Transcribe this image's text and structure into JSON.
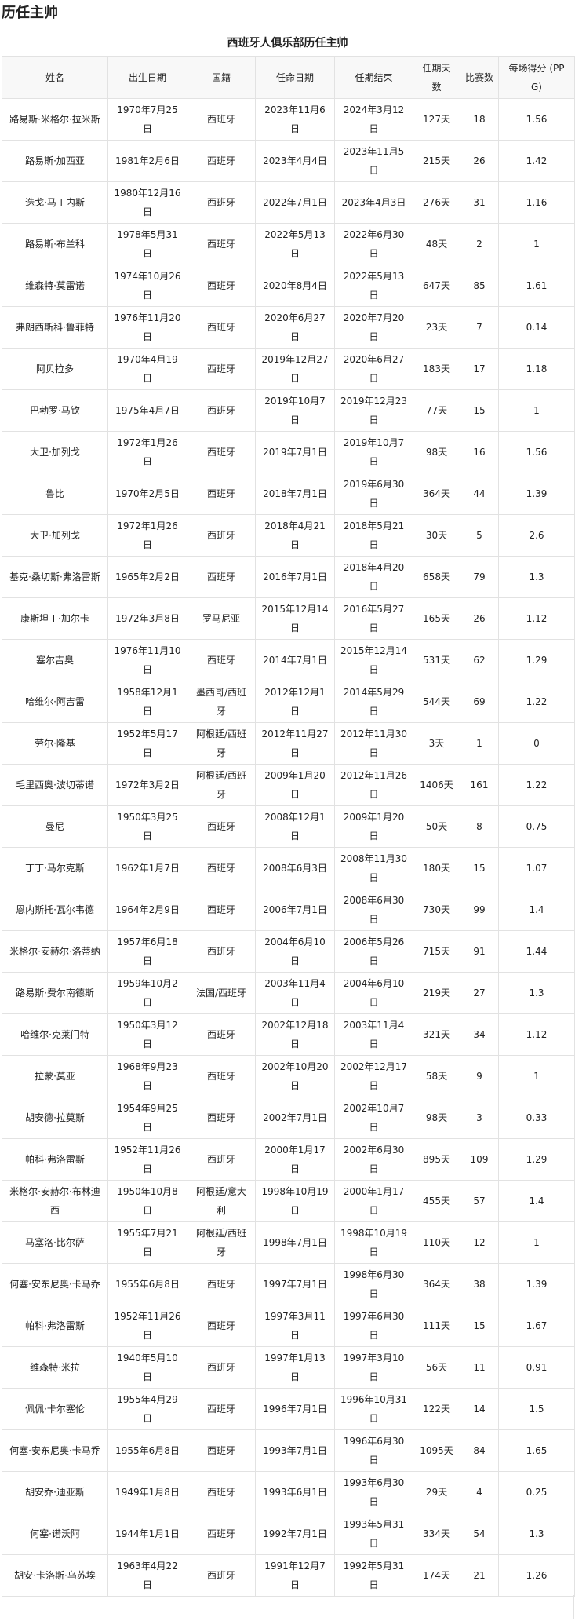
{
  "page_title": "历任主帅",
  "table": {
    "caption": "西班牙人俱乐部历任主帅",
    "columns": [
      "姓名",
      "出生日期",
      "国籍",
      "任命日期",
      "任期结束",
      "任期天数",
      "比赛数",
      "每场得分 (PPG)"
    ],
    "rows": [
      [
        "路易斯·米格尔·拉米斯",
        "1970年7月25日",
        "西班牙",
        "2023年11月6日",
        "2024年3月12日",
        "127天",
        "18",
        "1.56"
      ],
      [
        "路易斯·加西亚",
        "1981年2月6日",
        "西班牙",
        "2023年4月4日",
        "2023年11月5日",
        "215天",
        "26",
        "1.42"
      ],
      [
        "迭戈·马丁内斯",
        "1980年12月16日",
        "西班牙",
        "2022年7月1日",
        "2023年4月3日",
        "276天",
        "31",
        "1.16"
      ],
      [
        "路易斯·布兰科",
        "1978年5月31日",
        "西班牙",
        "2022年5月13日",
        "2022年6月30日",
        "48天",
        "2",
        "1"
      ],
      [
        "维森特·莫雷诺",
        "1974年10月26日",
        "西班牙",
        "2020年8月4日",
        "2022年5月13日",
        "647天",
        "85",
        "1.61"
      ],
      [
        "弗朗西斯科·鲁菲特",
        "1976年11月20日",
        "西班牙",
        "2020年6月27日",
        "2020年7月20日",
        "23天",
        "7",
        "0.14"
      ],
      [
        "阿贝拉多",
        "1970年4月19日",
        "西班牙",
        "2019年12月27日",
        "2020年6月27日",
        "183天",
        "17",
        "1.18"
      ],
      [
        "巴勃罗·马钦",
        "1975年4月7日",
        "西班牙",
        "2019年10月7日",
        "2019年12月23日",
        "77天",
        "15",
        "1"
      ],
      [
        "大卫·加列戈",
        "1972年1月26日",
        "西班牙",
        "2019年7月1日",
        "2019年10月7日",
        "98天",
        "16",
        "1.56"
      ],
      [
        "鲁比",
        "1970年2月5日",
        "西班牙",
        "2018年7月1日",
        "2019年6月30日",
        "364天",
        "44",
        "1.39"
      ],
      [
        "大卫·加列戈",
        "1972年1月26日",
        "西班牙",
        "2018年4月21日",
        "2018年5月21日",
        "30天",
        "5",
        "2.6"
      ],
      [
        "基克·桑切斯·弗洛雷斯",
        "1965年2月2日",
        "西班牙",
        "2016年7月1日",
        "2018年4月20日",
        "658天",
        "79",
        "1.3"
      ],
      [
        "康斯坦丁·加尔卡",
        "1972年3月8日",
        "罗马尼亚",
        "2015年12月14日",
        "2016年5月27日",
        "165天",
        "26",
        "1.12"
      ],
      [
        "塞尔吉奥",
        "1976年11月10日",
        "西班牙",
        "2014年7月1日",
        "2015年12月14日",
        "531天",
        "62",
        "1.29"
      ],
      [
        "哈维尔·阿吉雷",
        "1958年12月1日",
        "墨西哥/西班牙",
        "2012年12月1日",
        "2014年5月29日",
        "544天",
        "69",
        "1.22"
      ],
      [
        "劳尔·隆基",
        "1952年5月17日",
        "阿根廷/西班牙",
        "2012年11月27日",
        "2012年11月30日",
        "3天",
        "1",
        "0"
      ],
      [
        "毛里西奥·波切蒂诺",
        "1972年3月2日",
        "阿根廷/西班牙",
        "2009年1月20日",
        "2012年11月26日",
        "1406天",
        "161",
        "1.22"
      ],
      [
        "曼尼",
        "1950年3月25日",
        "西班牙",
        "2008年12月1日",
        "2009年1月20日",
        "50天",
        "8",
        "0.75"
      ],
      [
        "丁丁·马尔克斯",
        "1962年1月7日",
        "西班牙",
        "2008年6月3日",
        "2008年11月30日",
        "180天",
        "15",
        "1.07"
      ],
      [
        "恩内斯托·瓦尔韦德",
        "1964年2月9日",
        "西班牙",
        "2006年7月1日",
        "2008年6月30日",
        "730天",
        "99",
        "1.4"
      ],
      [
        "米格尔·安赫尔·洛蒂纳",
        "1957年6月18日",
        "西班牙",
        "2004年6月10日",
        "2006年5月26日",
        "715天",
        "91",
        "1.44"
      ],
      [
        "路易斯·费尔南德斯",
        "1959年10月2日",
        "法国/西班牙",
        "2003年11月4日",
        "2004年6月10日",
        "219天",
        "27",
        "1.3"
      ],
      [
        "哈维尔·克莱门特",
        "1950年3月12日",
        "西班牙",
        "2002年12月18日",
        "2003年11月4日",
        "321天",
        "34",
        "1.12"
      ],
      [
        "拉蒙·莫亚",
        "1968年9月23日",
        "西班牙",
        "2002年10月20日",
        "2002年12月17日",
        "58天",
        "9",
        "1"
      ],
      [
        "胡安德·拉莫斯",
        "1954年9月25日",
        "西班牙",
        "2002年7月1日",
        "2002年10月7日",
        "98天",
        "3",
        "0.33"
      ],
      [
        "帕科·弗洛雷斯",
        "1952年11月26日",
        "西班牙",
        "2000年1月17日",
        "2002年6月30日",
        "895天",
        "109",
        "1.29"
      ],
      [
        "米格尔·安赫尔·布林迪西",
        "1950年10月8日",
        "阿根廷/意大利",
        "1998年10月19日",
        "2000年1月17日",
        "455天",
        "57",
        "1.4"
      ],
      [
        "马塞洛·比尔萨",
        "1955年7月21日",
        "阿根廷/西班牙",
        "1998年7月1日",
        "1998年10月19日",
        "110天",
        "12",
        "1"
      ],
      [
        "何塞·安东尼奥·卡马乔",
        "1955年6月8日",
        "西班牙",
        "1997年7月1日",
        "1998年6月30日",
        "364天",
        "38",
        "1.39"
      ],
      [
        "帕科·弗洛雷斯",
        "1952年11月26日",
        "西班牙",
        "1997年3月11日",
        "1997年6月30日",
        "111天",
        "15",
        "1.67"
      ],
      [
        "维森特·米拉",
        "1940年5月10日",
        "西班牙",
        "1997年1月13日",
        "1997年3月10日",
        "56天",
        "11",
        "0.91"
      ],
      [
        "佩佩·卡尔塞伦",
        "1955年4月29日",
        "西班牙",
        "1996年7月1日",
        "1996年10月31日",
        "122天",
        "14",
        "1.5"
      ],
      [
        "何塞·安东尼奥·卡马乔",
        "1955年6月8日",
        "西班牙",
        "1993年7月1日",
        "1996年6月30日",
        "1095天",
        "84",
        "1.65"
      ],
      [
        "胡安乔·迪亚斯",
        "1949年1月8日",
        "西班牙",
        "1993年6月1日",
        "1993年6月30日",
        "29天",
        "4",
        "0.25"
      ],
      [
        "何塞·诺沃阿",
        "1944年1月1日",
        "西班牙",
        "1992年7月1日",
        "1993年5月31日",
        "334天",
        "54",
        "1.3"
      ],
      [
        "胡安·卡洛斯·乌苏埃",
        "1963年4月22日",
        "西班牙",
        "1991年12月7日",
        "1992年5月31日",
        "174天",
        "21",
        "1.26"
      ]
    ]
  }
}
